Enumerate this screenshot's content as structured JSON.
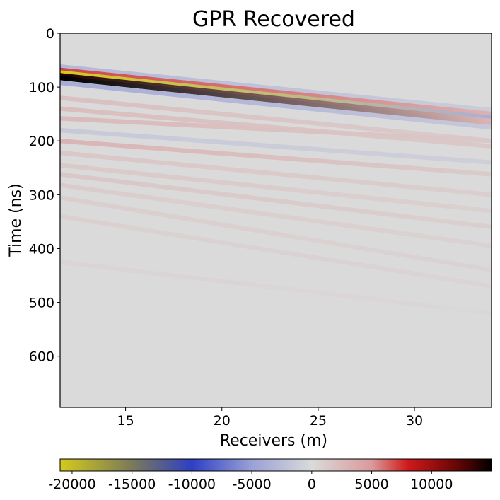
{
  "chart_data": {
    "type": "heatmap",
    "title": "GPR Recovered",
    "xlabel": "Receivers (m)",
    "ylabel": "Time (ns)",
    "xlim": [
      11.6,
      34.0
    ],
    "ylim": [
      695,
      0
    ],
    "x_ticks": [
      15,
      20,
      25,
      30
    ],
    "y_ticks": [
      0,
      100,
      200,
      300,
      400,
      500,
      600
    ],
    "background_value": 0,
    "events": [
      {
        "t0": 62,
        "t1": 143,
        "amplitude": -3000,
        "decay": 0.6
      },
      {
        "t0": 68,
        "t1": 150,
        "amplitude": 7000,
        "decay": 0.55
      },
      {
        "t0": 73,
        "t1": 157,
        "amplitude": -21000,
        "decay": 0.82
      },
      {
        "t0": 78,
        "t1": 163,
        "amplitude": 14000,
        "decay": 0.8
      },
      {
        "t0": 83,
        "t1": 168,
        "amplitude": 16000,
        "decay": 0.82
      },
      {
        "t0": 92,
        "t1": 175,
        "amplitude": -4000,
        "decay": 0.6
      },
      {
        "t0": 120,
        "t1": 200,
        "amplitude": 2000,
        "decay": 0.4
      },
      {
        "t0": 140,
        "t1": 210,
        "amplitude": 2200,
        "decay": 0.4
      },
      {
        "t0": 158,
        "t1": 200,
        "amplitude": 2500,
        "decay": 0.45
      },
      {
        "t0": 180,
        "t1": 240,
        "amplitude": -1500,
        "decay": 0.35
      },
      {
        "t0": 200,
        "t1": 262,
        "amplitude": 3000,
        "decay": 0.6
      },
      {
        "t0": 222,
        "t1": 300,
        "amplitude": 1500,
        "decay": 0.4
      },
      {
        "t0": 245,
        "t1": 330,
        "amplitude": 1300,
        "decay": 0.4
      },
      {
        "t0": 262,
        "t1": 360,
        "amplitude": 1500,
        "decay": 0.45
      },
      {
        "t0": 282,
        "t1": 395,
        "amplitude": 1100,
        "decay": 0.4
      },
      {
        "t0": 305,
        "t1": 440,
        "amplitude": 900,
        "decay": 0.4
      },
      {
        "t0": 340,
        "t1": 470,
        "amplitude": 800,
        "decay": 0.4
      },
      {
        "t0": 425,
        "t1": 520,
        "amplitude": 500,
        "decay": 0.5
      }
    ],
    "colorbar": {
      "ticks": [
        -20000,
        -15000,
        -10000,
        -5000,
        0,
        5000,
        10000
      ],
      "range": [
        -21000,
        15000
      ],
      "colormap": [
        {
          "value": -21000,
          "color": "#d4ca1c"
        },
        {
          "value": -15000,
          "color": "#7a7a5a"
        },
        {
          "value": -10000,
          "color": "#2e3fc4"
        },
        {
          "value": -5000,
          "color": "#9aa1d6"
        },
        {
          "value": 0,
          "color": "#dadada"
        },
        {
          "value": 5000,
          "color": "#da9a9a"
        },
        {
          "value": 8000,
          "color": "#cf1a1a"
        },
        {
          "value": 12000,
          "color": "#6a0606"
        },
        {
          "value": 15000,
          "color": "#000000"
        }
      ]
    }
  }
}
